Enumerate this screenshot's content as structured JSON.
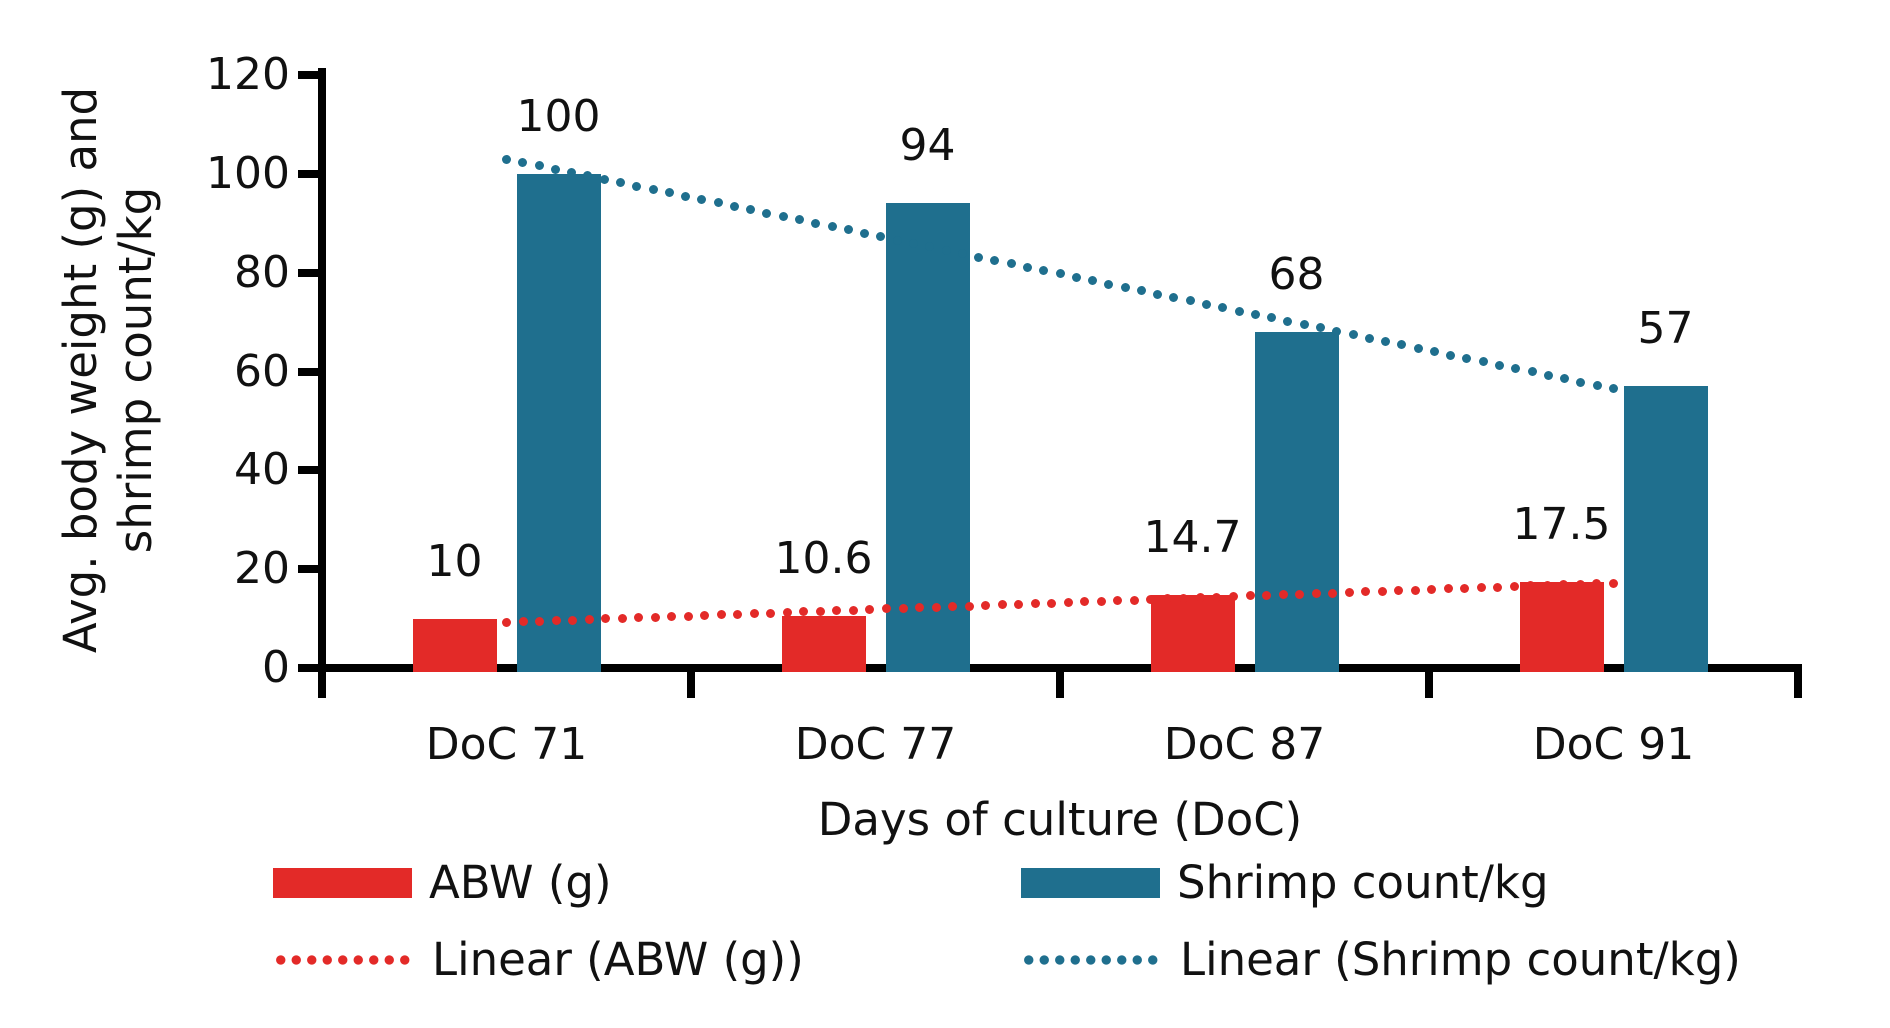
{
  "chart_data": {
    "type": "bar",
    "title": "",
    "categories": [
      "DoC 71",
      "DoC 77",
      "DoC 87",
      "DoC 91"
    ],
    "series": [
      {
        "name": "ABW (g)",
        "color": "#e32a28",
        "values": [
          10,
          10.6,
          14.7,
          17.5
        ],
        "labels": [
          "10",
          "10.6",
          "14.7",
          "17.5"
        ]
      },
      {
        "name": "Shrimp count/kg",
        "color": "#1f6f8e",
        "values": [
          100,
          94,
          68,
          57
        ],
        "labels": [
          "100",
          "94",
          "68",
          "57"
        ]
      }
    ],
    "trendlines": [
      {
        "name": "Linear (ABW (g))",
        "series": 0,
        "color": "#e32a28",
        "start_value": 9.2,
        "end_value": 17.2,
        "style": "dotted"
      },
      {
        "name": "Linear (Shrimp count/kg)",
        "series": 1,
        "color": "#1f6f8e",
        "start_value": 103,
        "end_value": 56.5,
        "style": "dotted"
      }
    ],
    "xlabel": "Days of culture (DoC)",
    "ylabel_line1": "Avg. body weight (g) and",
    "ylabel_line2": "shrimp count/kg",
    "ylim": [
      0,
      120
    ],
    "ytick_step": 20,
    "yticks": [
      "0",
      "20",
      "40",
      "60",
      "80",
      "100",
      "120"
    ],
    "grid": false,
    "legend_position": "bottom",
    "axis_color": "#000000",
    "text_color": "#111111",
    "background_color": "#ffffff"
  }
}
